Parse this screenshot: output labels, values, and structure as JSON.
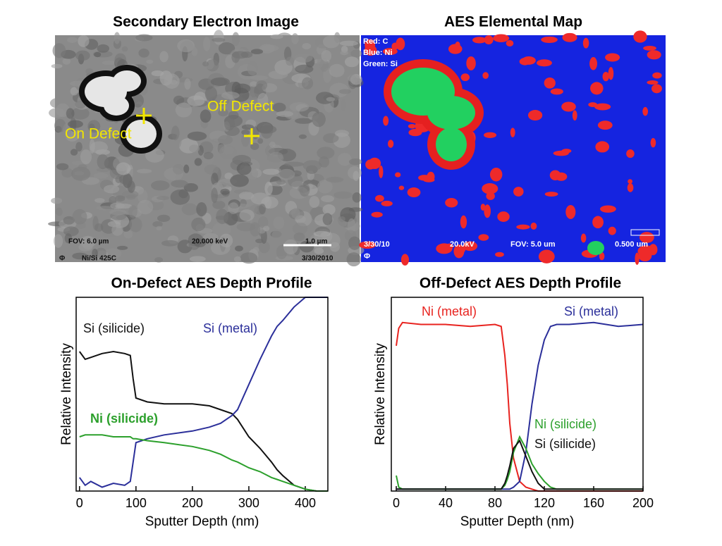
{
  "images": [
    {
      "title": "Secondary Electron Image",
      "labels": [
        "On Defect",
        "Off Defect"
      ],
      "footer": [
        "FOV: 6.0 µm",
        "20.000 keV",
        "1.0 µm",
        "Ni/Si 425C",
        "3/30/2010",
        "Φ"
      ]
    },
    {
      "title": "AES Elemental Map",
      "legend": [
        "Red: C",
        "Blue: Ni",
        "Green: Si"
      ],
      "footer": [
        "3/30/10",
        "20.0kV",
        "FOV: 5.0 um",
        "0.500 um",
        "Φ"
      ]
    }
  ],
  "chart_data": [
    {
      "type": "line",
      "title": "On-Defect AES Depth Profile",
      "x_label": "Sputter Depth (nm)",
      "y_label": "Relative Intensity",
      "xlim": [
        -6,
        440
      ],
      "ylim": [
        0,
        1
      ],
      "xticks": [
        0,
        100,
        200,
        300,
        400
      ],
      "x": [
        0,
        10,
        20,
        40,
        60,
        80,
        90,
        95,
        100,
        120,
        150,
        200,
        230,
        250,
        270,
        280,
        300,
        320,
        340,
        350,
        360,
        380,
        400,
        420,
        440
      ],
      "series": [
        {
          "name": "Si (silicide)",
          "color": "#111111",
          "values": [
            0.72,
            0.68,
            0.69,
            0.71,
            0.72,
            0.71,
            0.7,
            0.58,
            0.48,
            0.46,
            0.45,
            0.45,
            0.44,
            0.42,
            0.4,
            0.37,
            0.28,
            0.22,
            0.15,
            0.11,
            0.08,
            0.03,
            0.01,
            0,
            0
          ]
        },
        {
          "name": "Si (metal)",
          "color": "#2b2f9a",
          "values": [
            0.07,
            0.03,
            0.05,
            0.02,
            0.04,
            0.03,
            0.05,
            0.15,
            0.25,
            0.27,
            0.29,
            0.31,
            0.33,
            0.35,
            0.39,
            0.42,
            0.55,
            0.68,
            0.8,
            0.85,
            0.88,
            0.95,
            1.0,
            1.0,
            1.0
          ]
        },
        {
          "name": "Ni (silicide)",
          "color": "#2ca02c",
          "values": [
            0.28,
            0.29,
            0.29,
            0.29,
            0.28,
            0.28,
            0.28,
            0.27,
            0.27,
            0.26,
            0.25,
            0.23,
            0.21,
            0.19,
            0.16,
            0.15,
            0.12,
            0.1,
            0.07,
            0.06,
            0.05,
            0.03,
            0.01,
            0,
            0
          ]
        }
      ]
    },
    {
      "type": "line",
      "title": "Off-Defect AES Depth Profile",
      "x_label": "Sputter Depth (nm)",
      "y_label": "Relative Intensity",
      "xlim": [
        -4,
        200
      ],
      "ylim": [
        0,
        1
      ],
      "xticks": [
        0,
        40,
        80,
        120,
        160,
        200
      ],
      "x": [
        0,
        2,
        5,
        20,
        40,
        60,
        80,
        85,
        88,
        90,
        92,
        95,
        100,
        105,
        110,
        115,
        120,
        125,
        130,
        140,
        160,
        180,
        200
      ],
      "series": [
        {
          "name": "Ni (metal)",
          "color": "#e8231f",
          "values": [
            0.75,
            0.84,
            0.87,
            0.86,
            0.86,
            0.85,
            0.86,
            0.85,
            0.7,
            0.55,
            0.35,
            0.17,
            0.05,
            0.02,
            0.01,
            0,
            0,
            0,
            0,
            0,
            0,
            0,
            0
          ]
        },
        {
          "name": "Si (metal)",
          "color": "#2b2f9a",
          "values": [
            0.01,
            0.01,
            0.01,
            0.01,
            0.01,
            0.01,
            0.01,
            0.01,
            0.01,
            0.01,
            0.01,
            0.02,
            0.05,
            0.2,
            0.45,
            0.65,
            0.78,
            0.85,
            0.86,
            0.86,
            0.87,
            0.85,
            0.86
          ]
        },
        {
          "name": "Ni (silicide)",
          "color": "#2ca02c",
          "values": [
            0.08,
            0.02,
            0.01,
            0.01,
            0.01,
            0.01,
            0.01,
            0.01,
            0.03,
            0.06,
            0.1,
            0.2,
            0.28,
            0.22,
            0.14,
            0.09,
            0.05,
            0.02,
            0.01,
            0.01,
            0.01,
            0.01,
            0.01
          ]
        },
        {
          "name": "Si (silicide)",
          "color": "#111111",
          "values": [
            0.01,
            0.01,
            0.01,
            0.01,
            0.01,
            0.01,
            0.01,
            0.01,
            0.04,
            0.08,
            0.13,
            0.22,
            0.26,
            0.18,
            0.1,
            0.04,
            0.01,
            0.01,
            0.01,
            0.01,
            0.01,
            0.01,
            0.01
          ]
        }
      ]
    }
  ]
}
